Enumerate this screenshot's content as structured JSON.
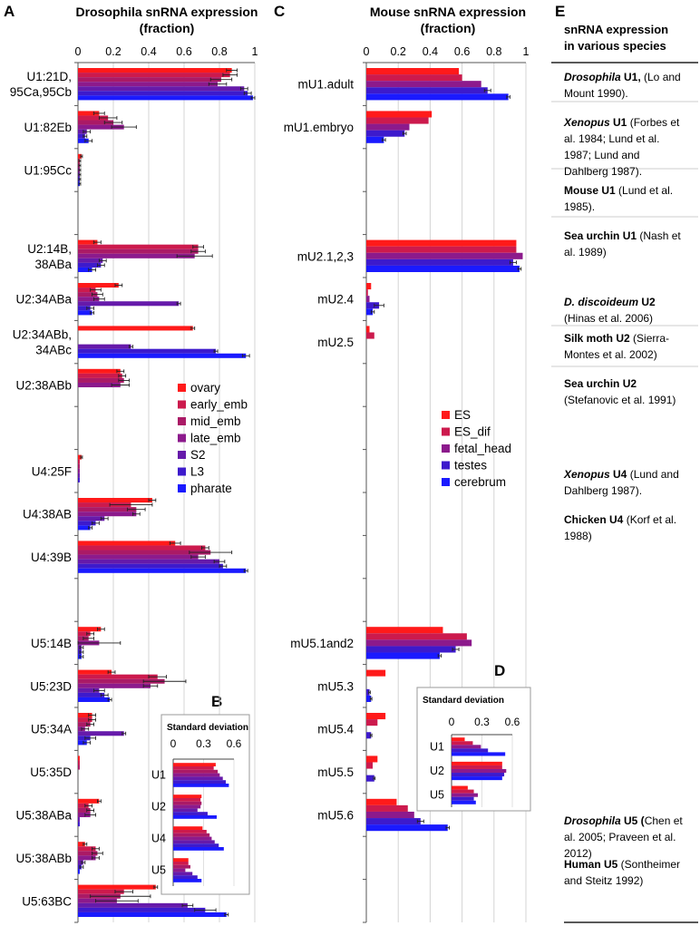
{
  "colors": {
    "series": [
      "#ff1a1a",
      "#cc1a4d",
      "#aa1a66",
      "#8c1a8c",
      "#661aaa",
      "#3d1acc",
      "#1a1aff"
    ],
    "grid": "#d4d4d4",
    "axis": "#555555"
  },
  "panel_letters": {
    "a": "A",
    "b": "B",
    "c": "C",
    "d": "D",
    "e": "E"
  },
  "chart_data": [
    {
      "id": "A",
      "type": "bar",
      "orientation": "horizontal",
      "title": "Drosophila snRNA expression (fraction)",
      "title_lines": [
        "Drosophila snRNA expression",
        "(fraction)"
      ],
      "xlim": [
        0,
        1
      ],
      "xticks": [
        0,
        0.2,
        0.4,
        0.6,
        0.8,
        1
      ],
      "xtick_labels": [
        "0",
        "0.2",
        "0.4",
        "0.6",
        "0.8",
        "1"
      ],
      "grid": true,
      "legend": "center-right",
      "series_names": [
        "ovary",
        "early_emb",
        "mid_emb",
        "late_emb",
        "S2",
        "L3",
        "pharate"
      ],
      "categories": [
        {
          "label": [
            "U1:21D,",
            "95Ca,95Cb"
          ],
          "slot": 1,
          "values": [
            0.87,
            0.86,
            0.81,
            0.79,
            0.94,
            0.96,
            0.99
          ],
          "err": [
            0.03,
            0.04,
            0.06,
            0.05,
            0.02,
            0.02,
            0.01
          ]
        },
        {
          "label": [
            "U1:82Eb"
          ],
          "slot": 2,
          "values": [
            0.12,
            0.17,
            0.2,
            0.26,
            0.05,
            0.04,
            0.06
          ],
          "err": [
            0.03,
            0.05,
            0.05,
            0.07,
            0.02,
            0.01,
            0.02
          ]
        },
        {
          "label": [
            "U1:95Cc"
          ],
          "slot": 3,
          "values": [
            0.02,
            0.01,
            0.01,
            0.01,
            0.01,
            0.01,
            0.01
          ],
          "err": [
            0.005,
            0.005,
            0.005,
            0.005,
            0.005,
            0.005,
            0.005
          ]
        },
        {
          "label": [
            "U2:14B,",
            "38ABa"
          ],
          "slot": 5,
          "values": [
            0.11,
            0.68,
            0.68,
            0.66,
            0.14,
            0.13,
            0.08
          ],
          "err": [
            0.02,
            0.03,
            0.04,
            0.1,
            0.02,
            0.02,
            0.02
          ]
        },
        {
          "label": [
            "U2:34ABa"
          ],
          "slot": 6,
          "values": [
            0.23,
            0.1,
            0.11,
            0.12,
            0.57,
            0.07,
            0.08
          ],
          "err": [
            0.02,
            0.03,
            0.03,
            0.03,
            0.01,
            0.02,
            0.01
          ]
        },
        {
          "label": [
            "U2:34ABb,",
            "34ABc"
          ],
          "slot": 7,
          "values": [
            0.65,
            0.0,
            0.0,
            0.0,
            0.3,
            0.78,
            0.95
          ],
          "err": [
            0.01,
            0,
            0,
            0,
            0.01,
            0.01,
            0.02
          ]
        },
        {
          "label": [
            "U2:38ABb"
          ],
          "slot": 8,
          "values": [
            0.24,
            0.25,
            0.26,
            0.24,
            0.0,
            0.0,
            0.0
          ],
          "err": [
            0.02,
            0.02,
            0.03,
            0.05,
            0,
            0,
            0
          ]
        },
        {
          "label": [
            "U4:25F"
          ],
          "slot": 10,
          "values": [
            0.02,
            0.01,
            0.01,
            0.01,
            0.01,
            0.01,
            0.0
          ],
          "err": [
            0.005,
            0,
            0,
            0,
            0,
            0,
            0
          ]
        },
        {
          "label": [
            "U4:38AB"
          ],
          "slot": 11,
          "values": [
            0.42,
            0.3,
            0.33,
            0.33,
            0.15,
            0.1,
            0.07
          ],
          "err": [
            0.02,
            0.12,
            0.05,
            0.02,
            0.02,
            0.02,
            0.01
          ]
        },
        {
          "label": [
            "U4:39B"
          ],
          "slot": 12,
          "values": [
            0.55,
            0.72,
            0.75,
            0.68,
            0.8,
            0.82,
            0.95
          ],
          "err": [
            0.03,
            0.02,
            0.12,
            0.04,
            0.03,
            0.02,
            0.01
          ]
        },
        {
          "label": [
            "U5:14B"
          ],
          "slot": 14,
          "values": [
            0.13,
            0.07,
            0.06,
            0.12,
            0.02,
            0.02,
            0.02
          ],
          "err": [
            0.02,
            0.02,
            0.03,
            0.12,
            0.01,
            0.01,
            0.01
          ]
        },
        {
          "label": [
            "U5:23D"
          ],
          "slot": 15,
          "values": [
            0.19,
            0.45,
            0.49,
            0.41,
            0.12,
            0.15,
            0.18
          ],
          "err": [
            0.02,
            0.05,
            0.12,
            0.04,
            0.03,
            0.02,
            0.01
          ]
        },
        {
          "label": [
            "U5:34A"
          ],
          "slot": 16,
          "values": [
            0.08,
            0.08,
            0.07,
            0.04,
            0.26,
            0.07,
            0.05
          ],
          "err": [
            0.02,
            0.02,
            0.02,
            0.02,
            0.01,
            0.03,
            0.02
          ]
        },
        {
          "label": [
            "U5:35D"
          ],
          "slot": 17,
          "values": [
            0.01,
            0.01,
            0.01,
            0.0,
            0.0,
            0.0,
            0.0
          ],
          "err": [
            0,
            0,
            0,
            0,
            0,
            0,
            0
          ]
        },
        {
          "label": [
            "U5:38ABa"
          ],
          "slot": 18,
          "values": [
            0.12,
            0.06,
            0.07,
            0.07,
            0.01,
            0.01,
            0.0
          ],
          "err": [
            0.01,
            0.02,
            0.02,
            0.03,
            0,
            0,
            0
          ]
        },
        {
          "label": [
            "U5:38ABb"
          ],
          "slot": 19,
          "values": [
            0.04,
            0.1,
            0.11,
            0.1,
            0.03,
            0.02,
            0.01
          ],
          "err": [
            0.01,
            0.02,
            0.03,
            0.02,
            0.01,
            0.01,
            0
          ]
        },
        {
          "label": [
            "U5:63BC"
          ],
          "slot": 20,
          "values": [
            0.44,
            0.26,
            0.24,
            0.22,
            0.62,
            0.72,
            0.84
          ],
          "err": [
            0.01,
            0.05,
            0.17,
            0.12,
            0.03,
            0.06,
            0.01
          ]
        }
      ]
    },
    {
      "id": "B",
      "type": "bar",
      "orientation": "horizontal",
      "title": "Standard deviation",
      "xlim": [
        0,
        0.6
      ],
      "xticks": [
        0,
        0.3,
        0.6
      ],
      "xtick_labels": [
        "0",
        "0.3",
        "0.6"
      ],
      "categories": [
        {
          "label": "U1",
          "values": [
            0.42,
            0.4,
            0.44,
            0.46,
            0.49,
            0.52,
            0.55
          ]
        },
        {
          "label": "U2",
          "values": [
            0.28,
            0.27,
            0.28,
            0.27,
            0.24,
            0.34,
            0.43
          ]
        },
        {
          "label": "U4",
          "values": [
            0.29,
            0.33,
            0.36,
            0.38,
            0.41,
            0.45,
            0.5
          ]
        },
        {
          "label": "U5",
          "values": [
            0.15,
            0.15,
            0.17,
            0.12,
            0.19,
            0.24,
            0.28
          ]
        }
      ]
    },
    {
      "id": "C",
      "type": "bar",
      "orientation": "horizontal",
      "title": "Mouse snRNA expression (fraction)",
      "title_lines": [
        "Mouse snRNA expression",
        "(fraction)"
      ],
      "xlim": [
        0,
        1
      ],
      "xticks": [
        0,
        0.2,
        0.4,
        0.6,
        0.8,
        1
      ],
      "xtick_labels": [
        "0",
        "0.2",
        "0.4",
        "0.6",
        "0.8",
        "1"
      ],
      "grid": true,
      "legend": "center-right",
      "series_names": [
        "ES",
        "ES_dif",
        "fetal_head",
        "testes",
        "cerebrum"
      ],
      "categories": [
        {
          "label": "mU1.adult",
          "slot": 1,
          "values": [
            0.58,
            0.6,
            0.72,
            0.76,
            0.89
          ],
          "err": [
            0,
            0,
            0,
            0.02,
            0.01
          ]
        },
        {
          "label": "mU1.embryo",
          "slot": 2,
          "values": [
            0.41,
            0.39,
            0.27,
            0.24,
            0.11
          ],
          "err": [
            0,
            0,
            0,
            0.01,
            0.01
          ]
        },
        {
          "label": "mU2.1,2,3",
          "slot": 5,
          "values": [
            0.94,
            0.94,
            0.98,
            0.92,
            0.96
          ],
          "err": [
            0,
            0,
            0,
            0.02,
            0.01
          ]
        },
        {
          "label": "mU2.4",
          "slot": 6,
          "values": [
            0.03,
            0.01,
            0.02,
            0.08,
            0.04
          ],
          "err": [
            0,
            0,
            0,
            0.03,
            0.01
          ]
        },
        {
          "label": "mU2.5",
          "slot": 7,
          "values": [
            0.02,
            0.05,
            0.0,
            0.0,
            0.0
          ],
          "err": [
            0,
            0,
            0,
            0,
            0
          ]
        },
        {
          "label": "mU5.1and2",
          "slot": 14,
          "values": [
            0.48,
            0.63,
            0.66,
            0.56,
            0.46
          ],
          "err": [
            0,
            0,
            0,
            0.02,
            0.01
          ]
        },
        {
          "label": "mU5.3",
          "slot": 15,
          "values": [
            0.12,
            0.0,
            0.0,
            0.02,
            0.03
          ],
          "err": [
            0,
            0,
            0,
            0.005,
            0.005
          ]
        },
        {
          "label": "mU5.4",
          "slot": 16,
          "values": [
            0.12,
            0.07,
            0.0,
            0.03,
            0.0
          ],
          "err": [
            0,
            0,
            0,
            0.005,
            0
          ]
        },
        {
          "label": "mU5.5",
          "slot": 17,
          "values": [
            0.07,
            0.04,
            0.0,
            0.05,
            0.0
          ],
          "err": [
            0,
            0,
            0,
            0.005,
            0
          ]
        },
        {
          "label": "mU5.6",
          "slot": 18,
          "values": [
            0.19,
            0.26,
            0.3,
            0.34,
            0.51
          ],
          "err": [
            0,
            0,
            0,
            0.02,
            0.01
          ]
        }
      ]
    },
    {
      "id": "D",
      "type": "bar",
      "orientation": "horizontal",
      "title": "Standard deviation",
      "xlim": [
        0,
        0.6
      ],
      "xticks": [
        0,
        0.3,
        0.6
      ],
      "xtick_labels": [
        "0",
        "0.3",
        "0.6"
      ],
      "categories": [
        {
          "label": "U1",
          "values": [
            0.13,
            0.21,
            0.29,
            0.36,
            0.53
          ]
        },
        {
          "label": "U2",
          "values": [
            0.5,
            0.5,
            0.54,
            0.52,
            0.5
          ]
        },
        {
          "label": "U5",
          "values": [
            0.16,
            0.22,
            0.26,
            0.22,
            0.24
          ]
        }
      ]
    }
  ],
  "panel_e": {
    "header": [
      "snRNA expression",
      "in various species"
    ],
    "entries": [
      {
        "lines": [
          [
            {
              "t": "Drosophila",
              "b": true,
              "i": true
            },
            {
              "t": " U1, ",
              "b": true
            },
            {
              "t": "(Lo and"
            }
          ],
          [
            {
              "t": "Mount 1990)."
            }
          ]
        ]
      },
      {
        "lines": [
          [
            {
              "t": "Xenopus",
              "b": true,
              "i": true
            },
            {
              "t": " U1",
              "b": true
            },
            {
              "t": " (Forbes et"
            }
          ],
          [
            {
              "t": "al. 1984; Lund et al."
            }
          ],
          [
            {
              "t": "1987; Lund and"
            }
          ],
          [
            {
              "t": "Dahlberg 1987)."
            }
          ]
        ]
      },
      {
        "lines": [
          [
            {
              "t": "Mouse U1",
              "b": true
            },
            {
              "t": " (Lund et al."
            }
          ],
          [
            {
              "t": "1985)."
            }
          ]
        ]
      },
      {
        "lines": [
          [
            {
              "t": "Sea urchin U1",
              "b": true
            },
            {
              "t": " (Nash et"
            }
          ],
          [
            {
              "t": "al. 1989)"
            }
          ]
        ]
      },
      {
        "lines": [
          [
            {
              "t": "D. discoideum",
              "b": true,
              "i": true
            },
            {
              "t": " U2",
              "b": true
            }
          ],
          [
            {
              "t": "(Hinas et al. 2006)"
            }
          ]
        ]
      },
      {
        "lines": [
          [
            {
              "t": "Silk moth U2",
              "b": true
            },
            {
              "t": " (Sierra-"
            }
          ],
          [
            {
              "t": "Montes et al. 2002)"
            }
          ]
        ]
      },
      {
        "lines": [
          [
            {
              "t": "Sea urchin U2",
              "b": true
            }
          ],
          [
            {
              "t": "(Stefanovic et al. 1991)"
            }
          ]
        ]
      },
      {
        "lines": [
          [
            {
              "t": "Xenopus",
              "b": true,
              "i": true
            },
            {
              "t": " U4",
              "b": true
            },
            {
              "t": " (Lund and"
            }
          ],
          [
            {
              "t": "Dahlberg 1987)."
            }
          ]
        ]
      },
      {
        "lines": [
          [
            {
              "t": "Chicken U4",
              "b": true
            },
            {
              "t": " (Korf et al."
            }
          ],
          [
            {
              "t": "1988)"
            }
          ]
        ]
      },
      {
        "lines": [
          [
            {
              "t": "Drosophila",
              "b": true,
              "i": true
            },
            {
              "t": " U5 (",
              "b": true
            },
            {
              "t": "Chen et"
            }
          ],
          [
            {
              "t": "al. 2005; Praveen et al."
            }
          ],
          [
            {
              "t": "2012)"
            }
          ]
        ]
      },
      {
        "lines": [
          [
            {
              "t": "Human U5",
              "b": true
            },
            {
              "t": " (Sontheimer"
            }
          ],
          [
            {
              "t": "and Steitz 1992)"
            }
          ]
        ]
      }
    ]
  }
}
